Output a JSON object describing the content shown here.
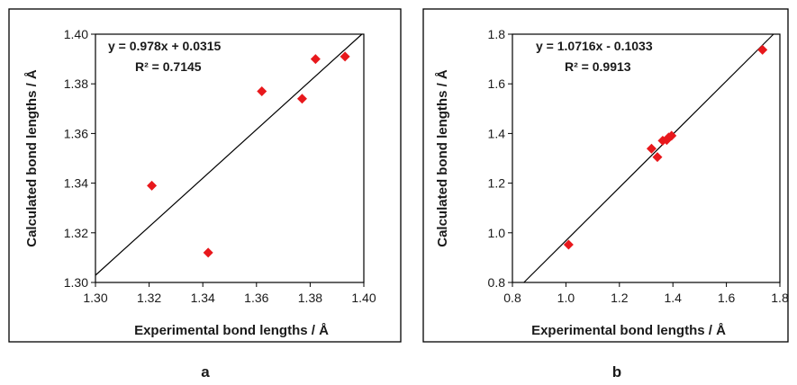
{
  "colors": {
    "marker": "#e8181c",
    "trend": "#000000",
    "frame": "#000000"
  },
  "chart_data": [
    {
      "type": "scatter",
      "panel_label": "a",
      "xlabel": "Experimental bond lengths / Å",
      "ylabel": "Calculated bond lengths / Å",
      "xlim": [
        1.3,
        1.4
      ],
      "ylim": [
        1.3,
        1.4
      ],
      "xticks": [
        "1.30",
        "1.32",
        "1.34",
        "1.36",
        "1.38",
        "1.40"
      ],
      "yticks": [
        "1.30",
        "1.32",
        "1.34",
        "1.36",
        "1.38",
        "1.40"
      ],
      "equation": "y = 0.978x + 0.0315",
      "r_squared": "R² = 0.7145",
      "trendline": {
        "slope": 0.978,
        "intercept": 0.0315
      },
      "points": [
        {
          "x": 1.321,
          "y": 1.339
        },
        {
          "x": 1.342,
          "y": 1.312
        },
        {
          "x": 1.362,
          "y": 1.377
        },
        {
          "x": 1.377,
          "y": 1.374
        },
        {
          "x": 1.382,
          "y": 1.39
        },
        {
          "x": 1.393,
          "y": 1.391
        }
      ]
    },
    {
      "type": "scatter",
      "panel_label": "b",
      "xlabel": "Experimental bond lengths / Å",
      "ylabel": "Calculated bond lengths / Å",
      "xlim": [
        0.8,
        1.8
      ],
      "ylim": [
        0.8,
        1.8
      ],
      "xticks": [
        "0.8",
        "1.0",
        "1.2",
        "1.4",
        "1.6",
        "1.8"
      ],
      "yticks": [
        "0.8",
        "1.0",
        "1.2",
        "1.4",
        "1.6",
        "1.8"
      ],
      "equation": "y = 1.0716x - 0.1033",
      "r_squared": "R² = 0.9913",
      "trendline": {
        "slope": 1.0716,
        "intercept": -0.1033
      },
      "points": [
        {
          "x": 1.01,
          "y": 0.952
        },
        {
          "x": 1.32,
          "y": 1.339
        },
        {
          "x": 1.342,
          "y": 1.305
        },
        {
          "x": 1.362,
          "y": 1.371
        },
        {
          "x": 1.377,
          "y": 1.374
        },
        {
          "x": 1.384,
          "y": 1.384
        },
        {
          "x": 1.395,
          "y": 1.391
        },
        {
          "x": 1.735,
          "y": 1.737
        }
      ]
    }
  ]
}
